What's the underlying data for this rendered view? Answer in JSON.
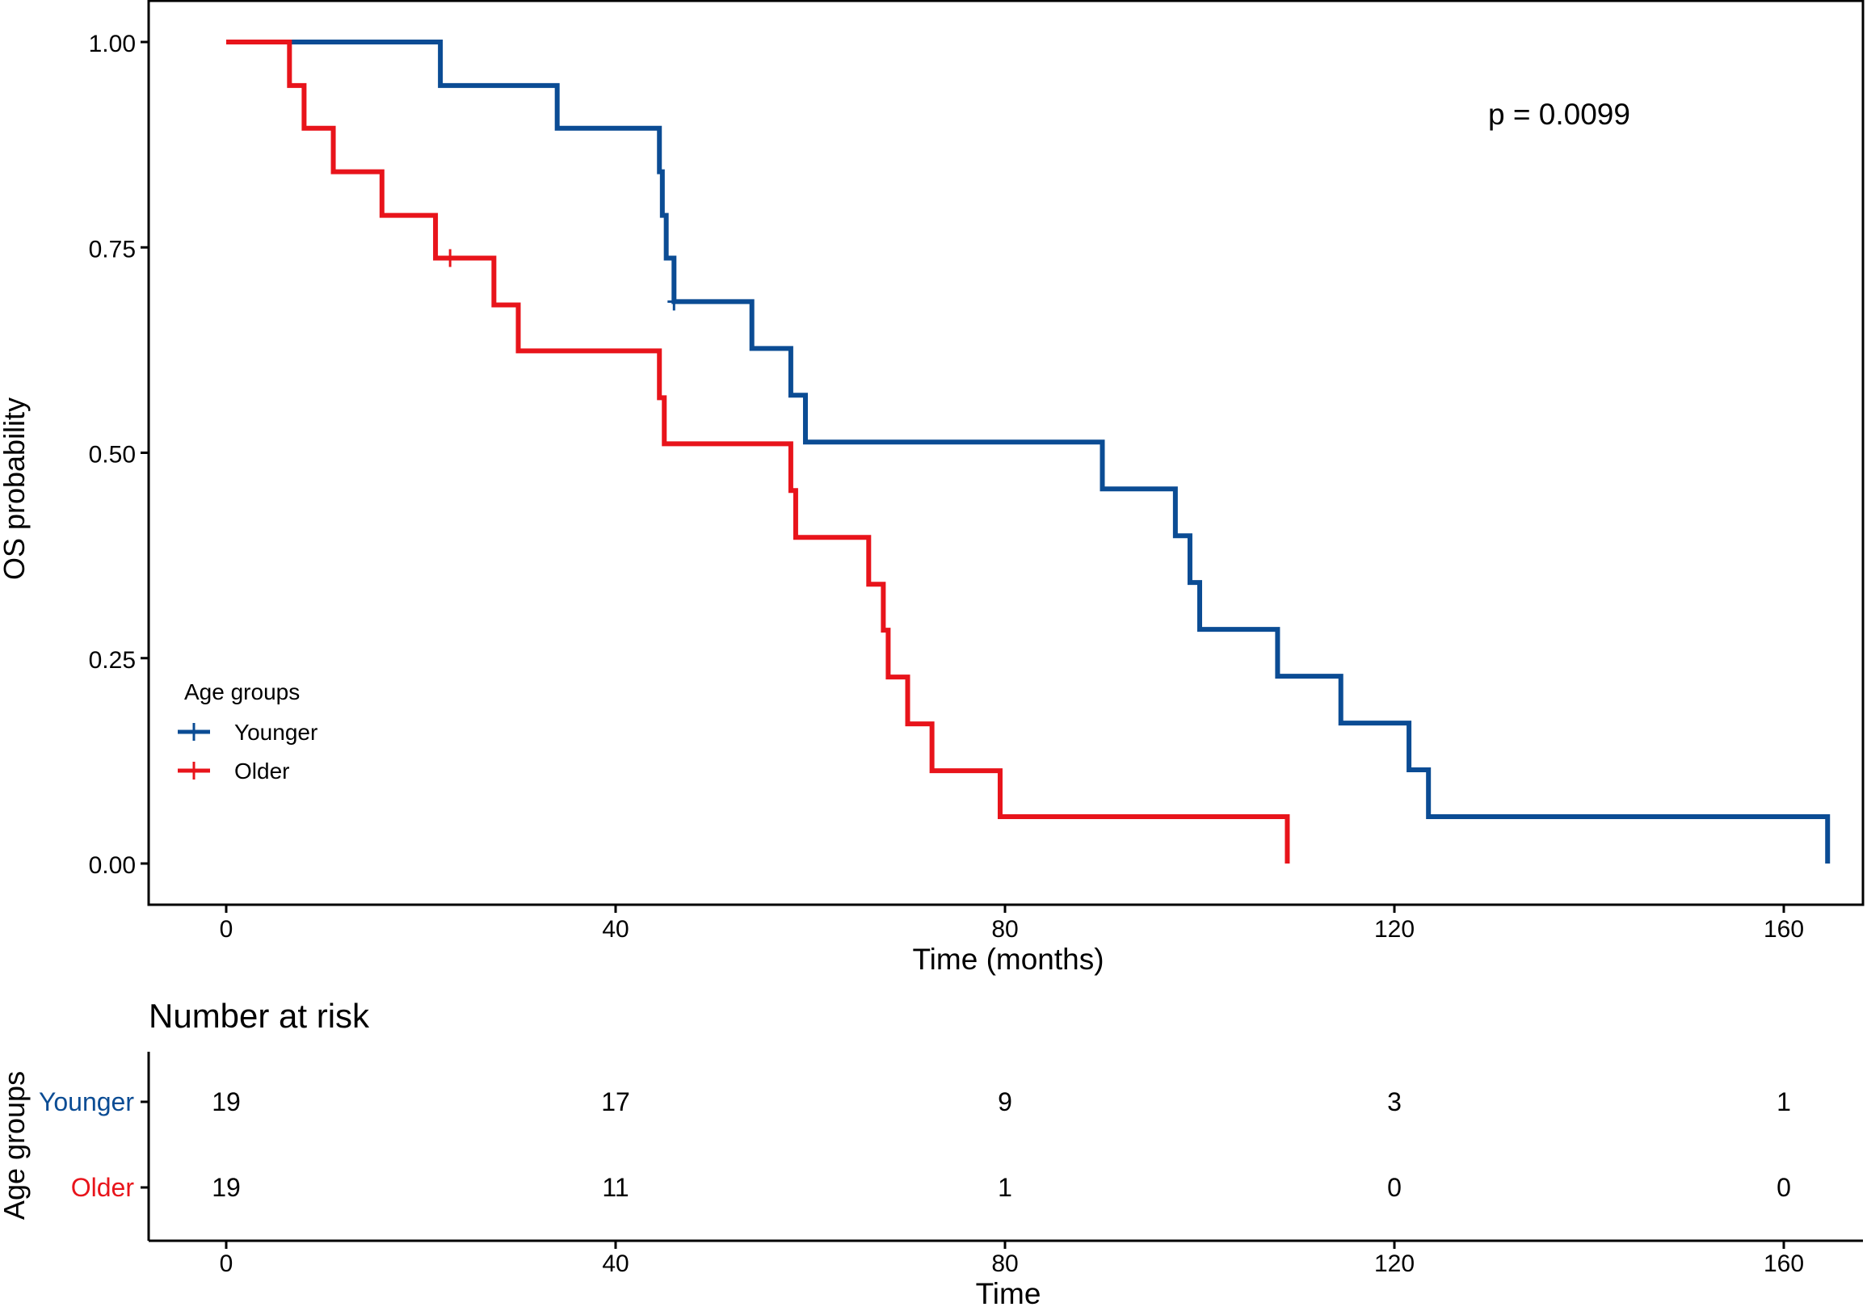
{
  "chart_data": {
    "type": "line",
    "subtype": "kaplan-meier",
    "xlabel": "Time (months)",
    "ylabel": "OS probability",
    "xlim": [
      -10,
      167
    ],
    "ylim": [
      -0.05,
      1.05
    ],
    "x_ticks": [
      "0",
      "40",
      "80",
      "120",
      "160"
    ],
    "x_tick_values": [
      0,
      40,
      80,
      120,
      160
    ],
    "y_ticks": [
      "0.00",
      "0.25",
      "0.50",
      "0.75",
      "1.00"
    ],
    "y_tick_values": [
      0,
      0.25,
      0.5,
      0.75,
      1.0
    ],
    "annotation": "p = 0.0099",
    "legend": {
      "title": "Age groups",
      "placement": "bottom-left",
      "entries": [
        "Younger",
        "Older"
      ]
    },
    "colors": {
      "Younger": "#0b4c94",
      "Older": "#e8141b"
    },
    "series": [
      {
        "name": "Younger",
        "steps": [
          [
            0,
            1.0
          ],
          [
            22,
            0.947
          ],
          [
            34,
            0.895
          ],
          [
            44.5,
            0.842
          ],
          [
            44.8,
            0.789
          ],
          [
            45.2,
            0.737
          ],
          [
            46,
            0.684
          ],
          [
            54,
            0.627
          ],
          [
            58,
            0.57
          ],
          [
            59.5,
            0.513
          ],
          [
            90,
            0.456
          ],
          [
            97.5,
            0.399
          ],
          [
            99,
            0.342
          ],
          [
            100,
            0.285
          ],
          [
            108,
            0.228
          ],
          [
            114.5,
            0.171
          ],
          [
            121.5,
            0.114
          ],
          [
            123.5,
            0.057
          ],
          [
            164.5,
            0.0
          ]
        ],
        "censored": [
          [
            46,
            0.684
          ]
        ]
      },
      {
        "name": "Older",
        "steps": [
          [
            0,
            1.0
          ],
          [
            6.5,
            0.947
          ],
          [
            8,
            0.895
          ],
          [
            11,
            0.842
          ],
          [
            16,
            0.789
          ],
          [
            21.5,
            0.737
          ],
          [
            27.5,
            0.68
          ],
          [
            30,
            0.624
          ],
          [
            44.5,
            0.567
          ],
          [
            45,
            0.511
          ],
          [
            58,
            0.454
          ],
          [
            58.5,
            0.397
          ],
          [
            66,
            0.34
          ],
          [
            67.5,
            0.284
          ],
          [
            68,
            0.227
          ],
          [
            70,
            0.17
          ],
          [
            72.5,
            0.113
          ],
          [
            79.5,
            0.057
          ],
          [
            109,
            0.0
          ]
        ],
        "censored": [
          [
            23,
            0.737
          ]
        ]
      }
    ],
    "risk_table": {
      "title": "Number at risk",
      "ylabel": "Age groups",
      "xlabel": "Time",
      "time_ticks": [
        "0",
        "40",
        "80",
        "120",
        "160"
      ],
      "rows": [
        {
          "group": "Younger",
          "counts": [
            "19",
            "17",
            "9",
            "3",
            "1"
          ]
        },
        {
          "group": "Older",
          "counts": [
            "19",
            "11",
            "1",
            "0",
            "0"
          ]
        }
      ]
    }
  }
}
